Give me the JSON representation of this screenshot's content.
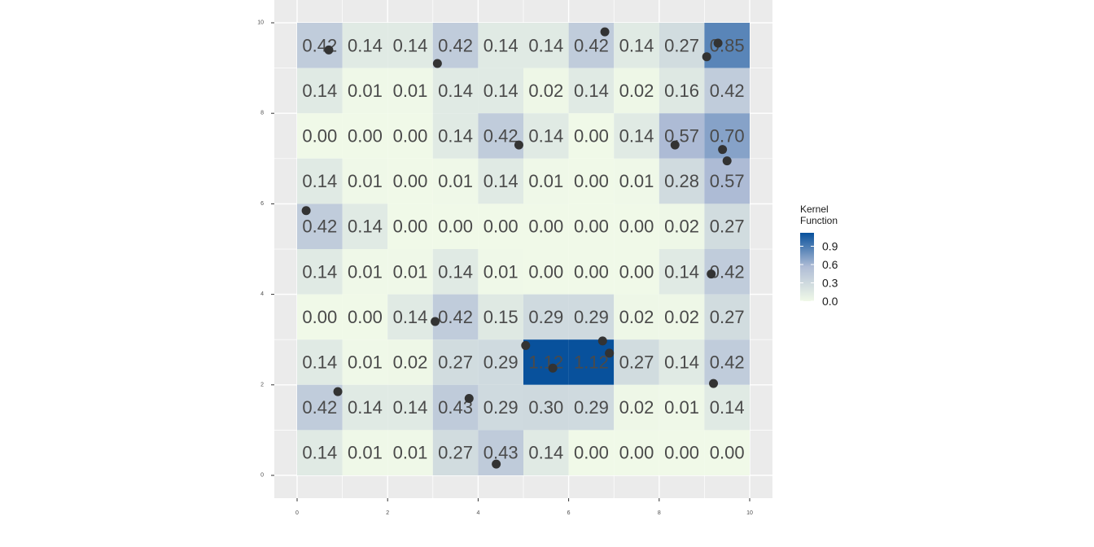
{
  "chart_data": {
    "type": "heatmap",
    "title": "",
    "xlabel": "",
    "ylabel": "",
    "xlim": [
      -0.5,
      10.5
    ],
    "ylim": [
      -0.5,
      10.5
    ],
    "x_ticks": [
      "0",
      "2",
      "4",
      "6",
      "8",
      "10"
    ],
    "y_ticks": [
      "0",
      "2",
      "4",
      "6",
      "8",
      "10"
    ],
    "grid": true,
    "cells": {
      "x_centers": [
        0.5,
        1.5,
        2.5,
        3.5,
        4.5,
        5.5,
        6.5,
        7.5,
        8.5,
        9.5
      ],
      "y_centers": [
        0.5,
        1.5,
        2.5,
        3.5,
        4.5,
        5.5,
        6.5,
        7.5,
        8.5,
        9.5
      ],
      "rows_top_to_bottom": [
        [
          "0.42",
          "0.14",
          "0.14",
          "0.42",
          "0.14",
          "0.14",
          "0.42",
          "0.14",
          "0.27",
          "0.85"
        ],
        [
          "0.14",
          "0.01",
          "0.01",
          "0.14",
          "0.14",
          "0.02",
          "0.14",
          "0.02",
          "0.16",
          "0.42"
        ],
        [
          "0.00",
          "0.00",
          "0.00",
          "0.14",
          "0.42",
          "0.14",
          "0.00",
          "0.14",
          "0.57",
          "0.70"
        ],
        [
          "0.14",
          "0.01",
          "0.00",
          "0.01",
          "0.14",
          "0.01",
          "0.00",
          "0.01",
          "0.28",
          "0.57"
        ],
        [
          "0.42",
          "0.14",
          "0.00",
          "0.00",
          "0.00",
          "0.00",
          "0.00",
          "0.00",
          "0.02",
          "0.27"
        ],
        [
          "0.14",
          "0.01",
          "0.01",
          "0.14",
          "0.01",
          "0.00",
          "0.00",
          "0.00",
          "0.14",
          "0.42"
        ],
        [
          "0.00",
          "0.00",
          "0.14",
          "0.42",
          "0.15",
          "0.29",
          "0.29",
          "0.02",
          "0.02",
          "0.27"
        ],
        [
          "0.14",
          "0.01",
          "0.02",
          "0.27",
          "0.29",
          "1.12",
          "1.12",
          "0.27",
          "0.14",
          "0.42"
        ],
        [
          "0.42",
          "0.14",
          "0.14",
          "0.43",
          "0.29",
          "0.30",
          "0.29",
          "0.02",
          "0.01",
          "0.14"
        ],
        [
          "0.14",
          "0.01",
          "0.01",
          "0.27",
          "0.43",
          "0.14",
          "0.00",
          "0.00",
          "0.00",
          "0.00"
        ]
      ]
    },
    "points": [
      {
        "x": 0.7,
        "y": 9.4
      },
      {
        "x": 3.1,
        "y": 9.1
      },
      {
        "x": 6.8,
        "y": 9.8
      },
      {
        "x": 9.05,
        "y": 9.25
      },
      {
        "x": 9.3,
        "y": 9.55
      },
      {
        "x": 4.9,
        "y": 7.3
      },
      {
        "x": 8.35,
        "y": 7.3
      },
      {
        "x": 9.4,
        "y": 7.2
      },
      {
        "x": 9.5,
        "y": 6.95
      },
      {
        "x": 0.2,
        "y": 5.85
      },
      {
        "x": 9.15,
        "y": 4.45
      },
      {
        "x": 3.05,
        "y": 3.4
      },
      {
        "x": 5.05,
        "y": 2.87
      },
      {
        "x": 6.75,
        "y": 2.97
      },
      {
        "x": 6.9,
        "y": 2.7
      },
      {
        "x": 5.65,
        "y": 2.37
      },
      {
        "x": 9.2,
        "y": 2.03
      },
      {
        "x": 0.9,
        "y": 1.85
      },
      {
        "x": 3.8,
        "y": 1.7
      },
      {
        "x": 4.4,
        "y": 0.25
      }
    ],
    "legend": {
      "title_lines": [
        "Kernel",
        "Function"
      ],
      "labels": [
        "0.9",
        "0.6",
        "0.3",
        "0.0"
      ],
      "values": [
        0.9,
        0.6,
        0.3,
        0.0
      ],
      "min": 0.0,
      "max": 1.12,
      "placement": "right"
    },
    "colors": {
      "low": "#f0f9e8",
      "mid": "#b0bdd6",
      "high": "#08519c",
      "panel": "#ebebeb",
      "grid": "#ffffff",
      "point": "#333333"
    }
  }
}
